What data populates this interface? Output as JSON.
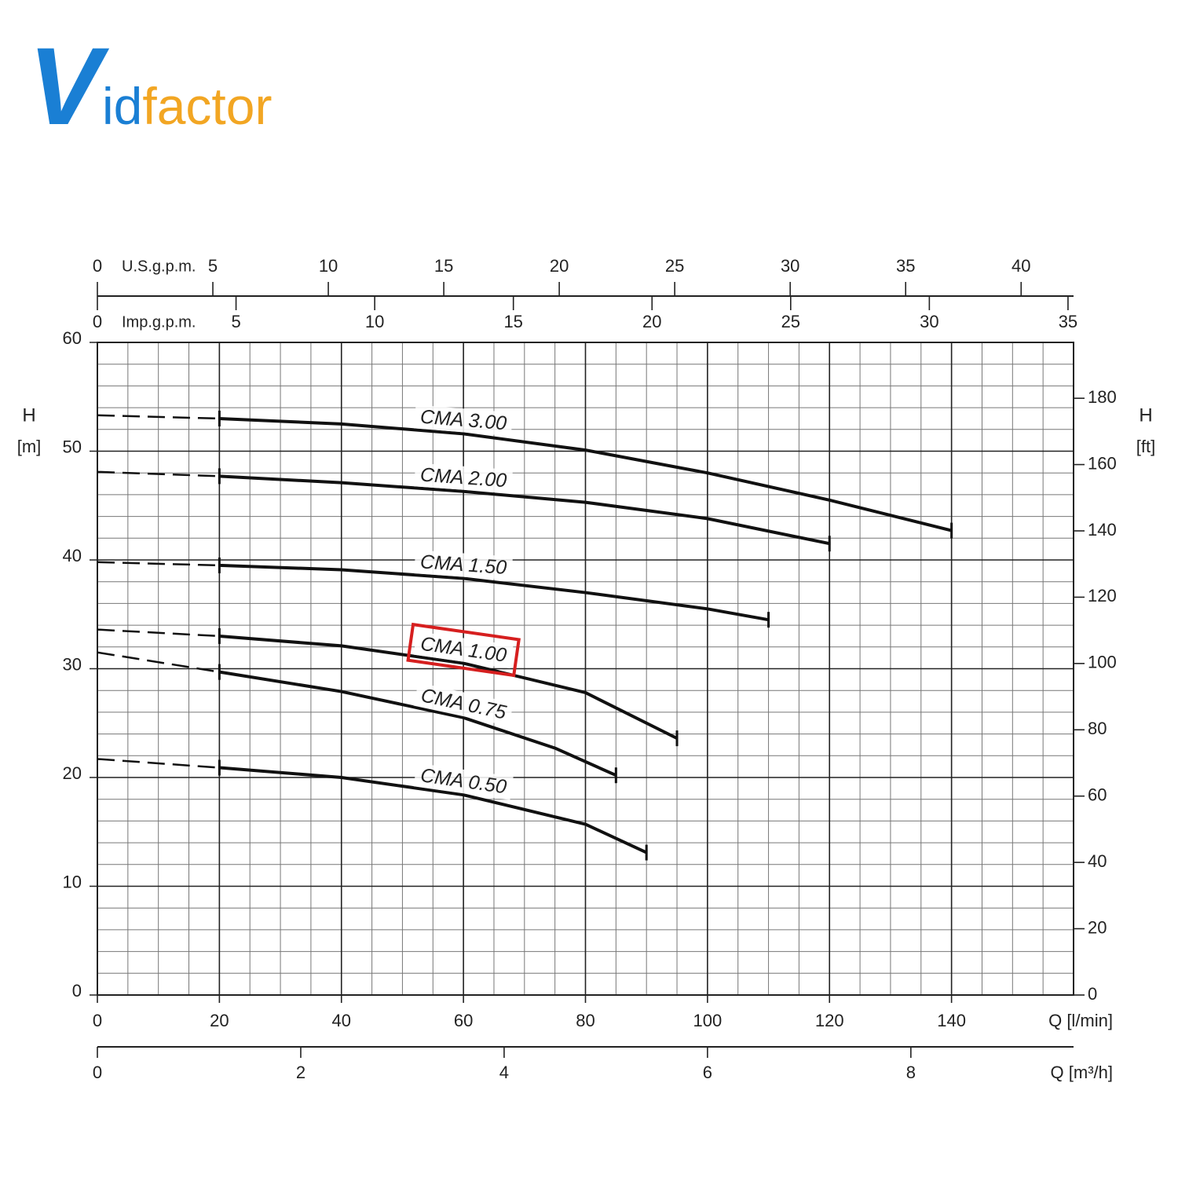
{
  "logo": {
    "parts": [
      "V",
      "id",
      "factor"
    ]
  },
  "chart_data": {
    "type": "line",
    "x_label": "Q [l/min]",
    "xlim": [
      0,
      160
    ],
    "xticks": [
      0,
      20,
      40,
      60,
      80,
      100,
      120,
      140
    ],
    "x2": {
      "label": "Q [m³/h]",
      "lim": [
        0,
        9.6
      ],
      "ticks": [
        0,
        2,
        4,
        6,
        8
      ]
    },
    "top_axes": [
      {
        "label": "U.S.g.p.m.",
        "lim": [
          0,
          42.27
        ],
        "ticks": [
          0,
          5,
          10,
          15,
          20,
          25,
          30,
          35,
          40
        ]
      },
      {
        "label": "Imp.g.p.m.",
        "lim": [
          0,
          35.2
        ],
        "ticks": [
          0,
          5,
          10,
          15,
          20,
          25,
          30,
          35
        ]
      }
    ],
    "y_label": {
      "name": "H",
      "unit": "[m]"
    },
    "ylim": [
      0,
      60
    ],
    "yticks": [
      0,
      10,
      20,
      30,
      40,
      50,
      60
    ],
    "y2_label": {
      "name": "H",
      "unit": "[ft]"
    },
    "y2lim": [
      0,
      196.85
    ],
    "y2ticks": [
      0,
      20,
      40,
      60,
      80,
      100,
      120,
      140,
      160,
      180
    ],
    "grid": true,
    "minor_grid": {
      "x": 5,
      "y": 2
    },
    "series": [
      {
        "name": "CMA 3.00",
        "color": "#111111",
        "x": [
          0,
          20,
          40,
          60,
          80,
          100,
          120,
          140
        ],
        "values": [
          53.3,
          53.0,
          52.5,
          51.6,
          50.1,
          48.0,
          45.5,
          42.7
        ]
      },
      {
        "name": "CMA 2.00",
        "color": "#111111",
        "x": [
          0,
          20,
          40,
          60,
          80,
          100,
          120
        ],
        "values": [
          48.1,
          47.7,
          47.1,
          46.3,
          45.3,
          43.8,
          41.5
        ]
      },
      {
        "name": "CMA 1.50",
        "color": "#111111",
        "x": [
          0,
          20,
          40,
          60,
          80,
          100,
          110
        ],
        "values": [
          39.8,
          39.5,
          39.1,
          38.3,
          37.0,
          35.5,
          34.5
        ]
      },
      {
        "name": "CMA 1.00",
        "color": "#111111",
        "highlighted": true,
        "x": [
          0,
          20,
          40,
          60,
          80,
          95
        ],
        "values": [
          33.6,
          33.0,
          32.1,
          30.5,
          27.8,
          23.6
        ]
      },
      {
        "name": "CMA 0.75",
        "color": "#111111",
        "x": [
          0,
          20,
          40,
          60,
          75,
          85
        ],
        "values": [
          31.5,
          29.7,
          27.9,
          25.5,
          22.7,
          20.2
        ]
      },
      {
        "name": "CMA 0.50",
        "color": "#111111",
        "x": [
          0,
          20,
          40,
          60,
          80,
          90
        ],
        "values": [
          21.7,
          20.9,
          20.0,
          18.4,
          15.7,
          13.1
        ]
      }
    ]
  }
}
